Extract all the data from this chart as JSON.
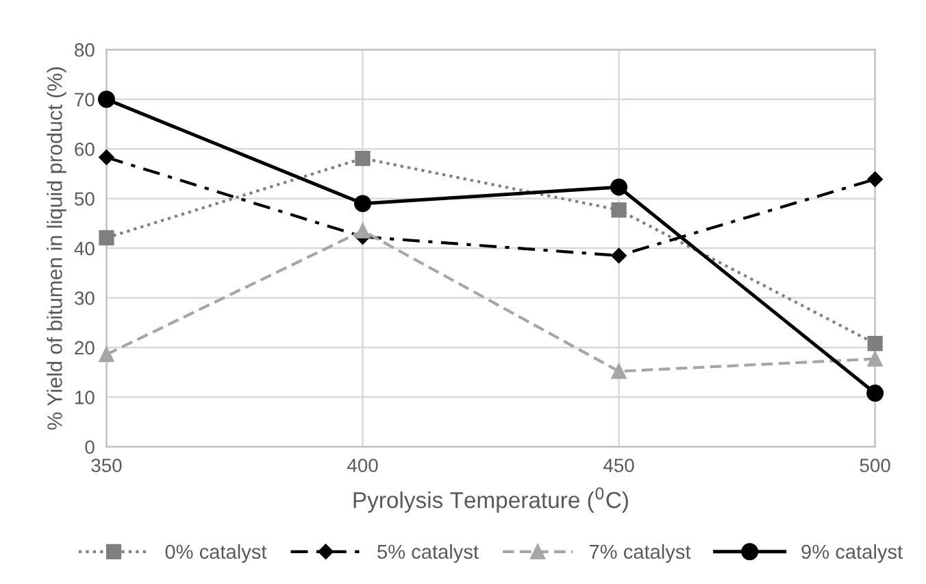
{
  "chart_data": {
    "type": "line",
    "xlabel": "Pyrolysis Temperature ($^{0}$C)",
    "ylabel": "% Yield of bitumen in liquid product (%)",
    "x": [
      350,
      400,
      450,
      500
    ],
    "xlim": [
      350,
      500
    ],
    "xticks": [
      350,
      400,
      450,
      500
    ],
    "ylim": [
      0,
      80
    ],
    "yticks": [
      0,
      10,
      20,
      30,
      40,
      50,
      60,
      70,
      80
    ],
    "grid": true,
    "legend": "bottom",
    "series": [
      {
        "name": "0% catalyst",
        "color": "#7f7f7f",
        "marker": "square",
        "line_style": "dotted",
        "values": [
          42.1,
          58.1,
          47.7,
          20.8
        ]
      },
      {
        "name": "5% catalyst",
        "color": "#000000",
        "marker": "diamond",
        "line_style": "dashdot",
        "values": [
          58.3,
          42.3,
          38.5,
          53.9
        ]
      },
      {
        "name": "7% catalyst",
        "color": "#a6a6a6",
        "marker": "triangle",
        "line_style": "dashed",
        "values": [
          18.6,
          43.5,
          15.2,
          17.7
        ]
      },
      {
        "name": "9% catalyst",
        "color": "#000000",
        "marker": "circle",
        "line_style": "solid",
        "values": [
          70.0,
          49.0,
          52.3,
          10.8
        ]
      }
    ]
  }
}
